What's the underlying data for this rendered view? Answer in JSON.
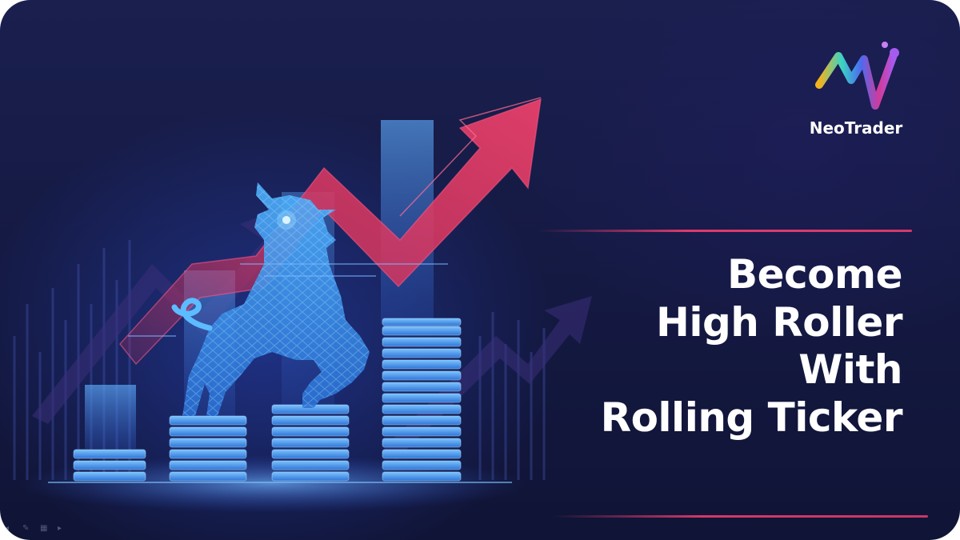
{
  "brand": {
    "name": "NeoTrader",
    "logo_icon": "neotrader-zigzag-logo-icon",
    "gradient_colors": [
      "#f6b21b",
      "#3bd4c3",
      "#4a6cf0",
      "#d23a9a",
      "#a45cf0"
    ]
  },
  "headline": {
    "line1": "Become",
    "line2": "High Roller",
    "line3": "With",
    "line4": "Rolling Ticker"
  },
  "illustration": {
    "subject": "bull-icon",
    "arrow": "trend-arrow-icon"
  },
  "colors": {
    "background": "#151a44",
    "accent_line": "#e93c6e",
    "arrow": "#d8365f",
    "coin": "#4fa6ee",
    "text": "#ffffff"
  },
  "toolbar_icons": [
    "back-icon",
    "pen-icon",
    "slides-icon",
    "more-icon"
  ]
}
